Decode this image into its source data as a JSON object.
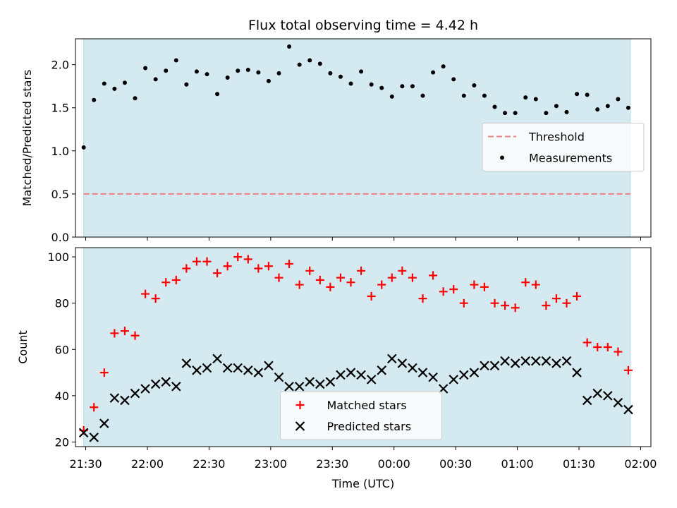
{
  "chart_data": {
    "title": "Flux total observing time = 4.42 h",
    "xlabel": "Time (UTC)",
    "x_tick_labels": [
      "21:30",
      "22:00",
      "22:30",
      "23:00",
      "23:30",
      "00:00",
      "00:30",
      "01:00",
      "01:30",
      "02:00"
    ],
    "x_range": [
      "21:25",
      "02:05"
    ],
    "observing_window": [
      "21:29",
      "01:55"
    ],
    "shading_color": "#d4eaf0",
    "panels": [
      {
        "type": "scatter",
        "ylabel": "Matched/Predicted stars",
        "ylim": [
          0,
          2.3
        ],
        "yticks": [
          0.0,
          0.5,
          1.0,
          1.5,
          2.0
        ],
        "y_tick_labels": [
          "0.0",
          "0.5",
          "1.0",
          "1.5",
          "2.0"
        ],
        "legend_position": "center-right",
        "threshold": {
          "name": "Threshold",
          "value": 0.5,
          "color": "#f08080"
        },
        "series": [
          {
            "name": "Measurements",
            "color": "#000000",
            "marker": "dot",
            "x": [
              "21:29",
              "21:34",
              "21:39",
              "21:44",
              "21:49",
              "21:54",
              "21:59",
              "22:04",
              "22:09",
              "22:14",
              "22:19",
              "22:24",
              "22:29",
              "22:34",
              "22:39",
              "22:44",
              "22:49",
              "22:54",
              "22:59",
              "23:04",
              "23:09",
              "23:14",
              "23:19",
              "23:24",
              "23:29",
              "23:34",
              "23:39",
              "23:44",
              "23:49",
              "23:54",
              "23:59",
              "00:04",
              "00:09",
              "00:14",
              "00:19",
              "00:24",
              "00:29",
              "00:34",
              "00:39",
              "00:44",
              "00:49",
              "00:54",
              "00:59",
              "01:04",
              "01:09",
              "01:14",
              "01:19",
              "01:24",
              "01:29",
              "01:34",
              "01:39",
              "01:44",
              "01:49",
              "01:54"
            ],
            "y": [
              1.04,
              1.59,
              1.78,
              1.72,
              1.79,
              1.61,
              1.96,
              1.83,
              1.93,
              2.05,
              1.77,
              1.92,
              1.89,
              1.66,
              1.85,
              1.93,
              1.94,
              1.91,
              1.81,
              1.9,
              2.21,
              2.0,
              2.05,
              2.01,
              1.9,
              1.86,
              1.78,
              1.92,
              1.77,
              1.73,
              1.63,
              1.75,
              1.75,
              1.64,
              1.91,
              1.98,
              1.83,
              1.64,
              1.76,
              1.64,
              1.51,
              1.44,
              1.44,
              1.62,
              1.6,
              1.44,
              1.52,
              1.45,
              1.66,
              1.65,
              1.48,
              1.52,
              1.6,
              1.5
            ]
          }
        ]
      },
      {
        "type": "scatter",
        "ylabel": "Count",
        "ylim": [
          18,
          104
        ],
        "yticks": [
          20,
          40,
          60,
          80,
          100
        ],
        "y_tick_labels": [
          "20",
          "40",
          "60",
          "80",
          "100"
        ],
        "legend_position": "lower-center",
        "series": [
          {
            "name": "Matched stars",
            "color": "#ff0000",
            "marker": "plus",
            "x": [
              "21:29",
              "21:34",
              "21:39",
              "21:44",
              "21:49",
              "21:54",
              "21:59",
              "22:04",
              "22:09",
              "22:14",
              "22:19",
              "22:24",
              "22:29",
              "22:34",
              "22:39",
              "22:44",
              "22:49",
              "22:54",
              "22:59",
              "23:04",
              "23:09",
              "23:14",
              "23:19",
              "23:24",
              "23:29",
              "23:34",
              "23:39",
              "23:44",
              "23:49",
              "23:54",
              "23:59",
              "00:04",
              "00:09",
              "00:14",
              "00:19",
              "00:24",
              "00:29",
              "00:34",
              "00:39",
              "00:44",
              "00:49",
              "00:54",
              "00:59",
              "01:04",
              "01:09",
              "01:14",
              "01:19",
              "01:24",
              "01:29",
              "01:34",
              "01:39",
              "01:44",
              "01:49",
              "01:54"
            ],
            "y": [
              25,
              35,
              50,
              67,
              68,
              66,
              84,
              82,
              89,
              90,
              95,
              98,
              98,
              93,
              96,
              100,
              99,
              95,
              96,
              91,
              97,
              88,
              94,
              90,
              87,
              91,
              89,
              94,
              83,
              88,
              91,
              94,
              91,
              82,
              92,
              85,
              86,
              80,
              88,
              87,
              80,
              79,
              78,
              89,
              88,
              79,
              82,
              80,
              83,
              63,
              61,
              61,
              59,
              51
            ]
          },
          {
            "name": "Predicted stars",
            "color": "#000000",
            "marker": "x",
            "x": [
              "21:29",
              "21:34",
              "21:39",
              "21:44",
              "21:49",
              "21:54",
              "21:59",
              "22:04",
              "22:09",
              "22:14",
              "22:19",
              "22:24",
              "22:29",
              "22:34",
              "22:39",
              "22:44",
              "22:49",
              "22:54",
              "22:59",
              "23:04",
              "23:09",
              "23:14",
              "23:19",
              "23:24",
              "23:29",
              "23:34",
              "23:39",
              "23:44",
              "23:49",
              "23:54",
              "23:59",
              "00:04",
              "00:09",
              "00:14",
              "00:19",
              "00:24",
              "00:29",
              "00:34",
              "00:39",
              "00:44",
              "00:49",
              "00:54",
              "00:59",
              "01:04",
              "01:09",
              "01:14",
              "01:19",
              "01:24",
              "01:29",
              "01:34",
              "01:39",
              "01:44",
              "01:49",
              "01:54"
            ],
            "y": [
              24,
              22,
              28,
              39,
              38,
              41,
              43,
              45,
              46,
              44,
              54,
              51,
              52,
              56,
              52,
              52,
              51,
              50,
              53,
              48,
              44,
              44,
              46,
              45,
              46,
              49,
              50,
              49,
              47,
              51,
              56,
              54,
              52,
              50,
              48,
              43,
              47,
              49,
              50,
              53,
              53,
              55,
              54,
              55,
              55,
              55,
              54,
              55,
              50,
              38,
              41,
              40,
              37,
              34
            ]
          }
        ]
      }
    ]
  }
}
